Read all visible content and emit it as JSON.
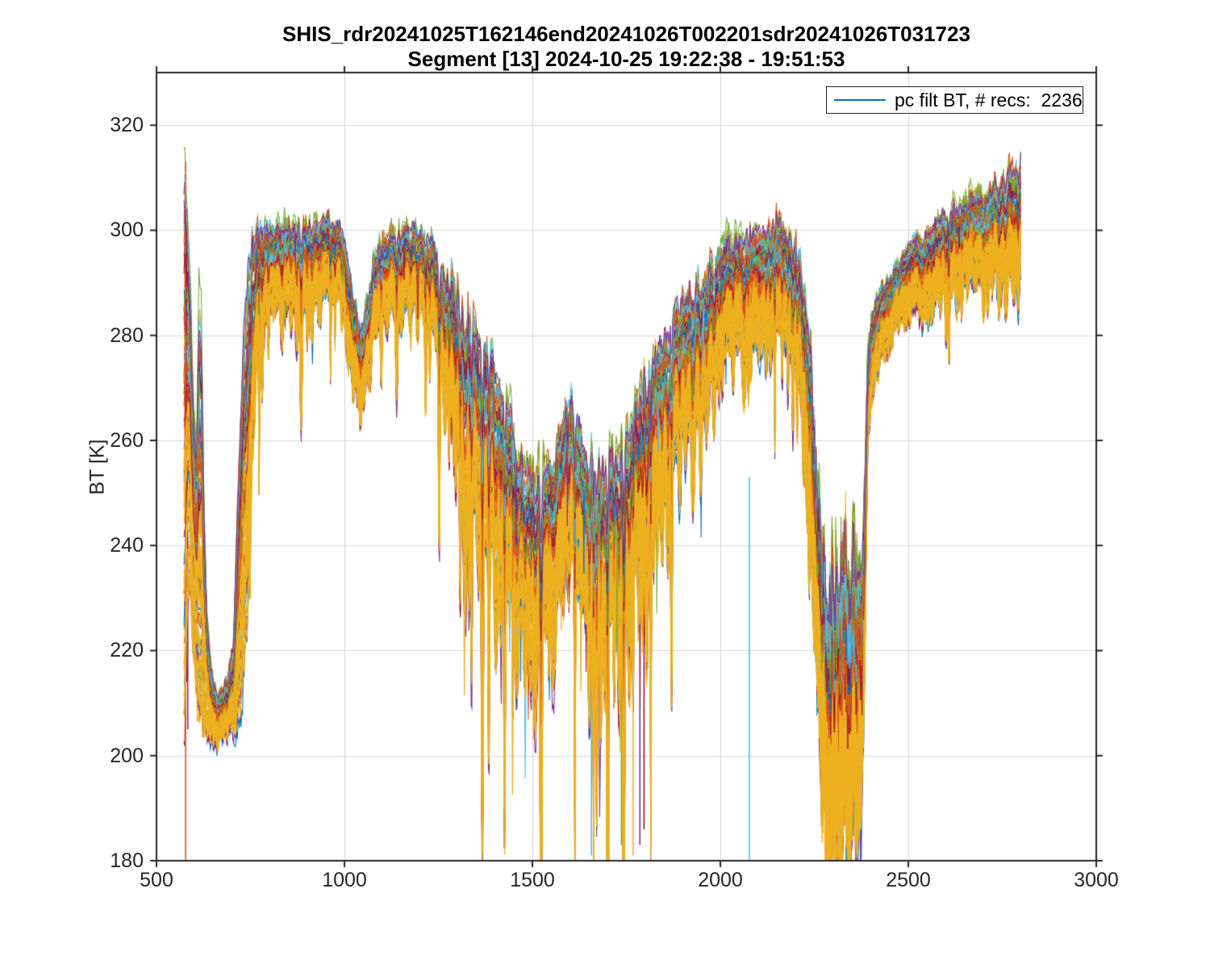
{
  "chart_data": {
    "type": "line",
    "title": "SHIS_rdr20241025T162146end20241026T002201sdr20241026T031723",
    "subtitle": "Segment [13] 2024-10-25 19:22:38 - 19:51:53",
    "ylabel": "BT [K]",
    "xlabel": "",
    "legend": {
      "label": "pc filt BT, # recs:  2236",
      "color": "#0072BD",
      "position": "top-right"
    },
    "n_records": 2236,
    "series_name": "pc filt BT",
    "xlim": [
      500,
      3000
    ],
    "ylim": [
      180,
      330
    ],
    "xticks": [
      500,
      1000,
      1500,
      2000,
      2500,
      3000
    ],
    "yticks": [
      180,
      200,
      220,
      240,
      260,
      280,
      300,
      320
    ],
    "grid": true,
    "grid_color": "#d9d9d9",
    "axis_color": "#262626",
    "palette": [
      "#0072BD",
      "#D95319",
      "#EDB120",
      "#7E2F8E",
      "#77AC30",
      "#4DBEEE",
      "#A2142F"
    ],
    "x_range_of_data": [
      573,
      2800
    ],
    "envelope_columns": [
      "x",
      "top_BT",
      "bottom_BT",
      "spike_depth",
      "noise_K"
    ],
    "envelope": [
      [
        575,
        310,
        206,
        0,
        4
      ],
      [
        582,
        302,
        228,
        8,
        4
      ],
      [
        590,
        289,
        232,
        9,
        4
      ],
      [
        598,
        269,
        222,
        8,
        4
      ],
      [
        606,
        259,
        215,
        8,
        4
      ],
      [
        613,
        287,
        209,
        6,
        5
      ],
      [
        619,
        284,
        207,
        6,
        5
      ],
      [
        626,
        251,
        205,
        5,
        4
      ],
      [
        634,
        227,
        204,
        4,
        3
      ],
      [
        646,
        216,
        203,
        3,
        2.5
      ],
      [
        662,
        212,
        203,
        3,
        2.5
      ],
      [
        678,
        212,
        203,
        3,
        2.5
      ],
      [
        692,
        215,
        204,
        3,
        2.5
      ],
      [
        704,
        221,
        205,
        4,
        2.5
      ],
      [
        713,
        241,
        206,
        7,
        3
      ],
      [
        723,
        263,
        210,
        10,
        4
      ],
      [
        733,
        281,
        219,
        14,
        5
      ],
      [
        743,
        292,
        233,
        18,
        5
      ],
      [
        753,
        297,
        253,
        22,
        5
      ],
      [
        763,
        300,
        271,
        24,
        4
      ],
      [
        773,
        301,
        280,
        23,
        3.5
      ],
      [
        790,
        301,
        284,
        22,
        3
      ],
      [
        820,
        301,
        285,
        21,
        3
      ],
      [
        850,
        302,
        286,
        20,
        3
      ],
      [
        890,
        302,
        287,
        20,
        3
      ],
      [
        930,
        302,
        288,
        19,
        3
      ],
      [
        965,
        302,
        288,
        18,
        3
      ],
      [
        985,
        301,
        287,
        18,
        3
      ],
      [
        1000,
        299,
        284,
        18,
        3
      ],
      [
        1012,
        294,
        277,
        17,
        3
      ],
      [
        1025,
        288,
        271,
        16,
        3
      ],
      [
        1038,
        283,
        267,
        15,
        3
      ],
      [
        1050,
        283,
        268,
        15,
        3
      ],
      [
        1062,
        288,
        273,
        14,
        3
      ],
      [
        1075,
        293,
        279,
        14,
        3
      ],
      [
        1090,
        297,
        282,
        14,
        3
      ],
      [
        1110,
        299,
        284,
        14,
        3
      ],
      [
        1140,
        300,
        285,
        15,
        3
      ],
      [
        1170,
        300,
        286,
        16,
        3
      ],
      [
        1200,
        300,
        285,
        18,
        3
      ],
      [
        1225,
        299,
        283,
        22,
        3
      ],
      [
        1245,
        297,
        279,
        28,
        4
      ],
      [
        1262,
        294,
        273,
        36,
        4
      ],
      [
        1278,
        291,
        266,
        42,
        5
      ],
      [
        1295,
        289,
        259,
        48,
        5
      ],
      [
        1312,
        287,
        254,
        52,
        5
      ],
      [
        1330,
        285,
        250,
        53,
        5
      ],
      [
        1350,
        283,
        248,
        53,
        5
      ],
      [
        1372,
        280,
        244,
        53,
        5
      ],
      [
        1392,
        276,
        241,
        52,
        5
      ],
      [
        1412,
        272,
        237,
        50,
        5
      ],
      [
        1432,
        267,
        232,
        48,
        5
      ],
      [
        1452,
        262,
        228,
        46,
        5
      ],
      [
        1472,
        258,
        224,
        44,
        5
      ],
      [
        1492,
        256,
        221,
        42,
        5
      ],
      [
        1512,
        254,
        220,
        42,
        5
      ],
      [
        1532,
        255,
        222,
        42,
        5
      ],
      [
        1552,
        258,
        226,
        43,
        5
      ],
      [
        1572,
        262,
        231,
        44,
        5
      ],
      [
        1590,
        267,
        238,
        45,
        4
      ],
      [
        1602,
        269,
        241,
        46,
        4
      ],
      [
        1616,
        265,
        235,
        48,
        5
      ],
      [
        1632,
        260,
        228,
        50,
        5
      ],
      [
        1650,
        257,
        225,
        52,
        5
      ],
      [
        1668,
        257,
        225,
        52,
        5
      ],
      [
        1685,
        258,
        226,
        53,
        5
      ],
      [
        1702,
        257,
        224,
        54,
        5
      ],
      [
        1720,
        258,
        225,
        55,
        5
      ],
      [
        1740,
        261,
        228,
        55,
        5
      ],
      [
        1760,
        265,
        231,
        55,
        5
      ],
      [
        1780,
        269,
        236,
        53,
        5
      ],
      [
        1800,
        273,
        240,
        51,
        5
      ],
      [
        1820,
        277,
        245,
        48,
        5
      ],
      [
        1840,
        280,
        249,
        45,
        5
      ],
      [
        1860,
        283,
        253,
        42,
        5
      ],
      [
        1880,
        285,
        257,
        40,
        4
      ],
      [
        1900,
        287,
        260,
        38,
        4
      ],
      [
        1925,
        289,
        263,
        36,
        4
      ],
      [
        1950,
        291,
        266,
        33,
        4
      ],
      [
        1975,
        293,
        270,
        31,
        4
      ],
      [
        2000,
        296,
        274,
        29,
        4
      ],
      [
        2030,
        298,
        277,
        27,
        3.5
      ],
      [
        2060,
        299,
        278,
        26,
        3.5
      ],
      [
        2090,
        300,
        279,
        26,
        3.5
      ],
      [
        2120,
        300,
        279,
        25,
        3.5
      ],
      [
        2150,
        301,
        280,
        25,
        3.5
      ],
      [
        2180,
        300,
        278,
        25,
        3.5
      ],
      [
        2200,
        298,
        274,
        25,
        3.5
      ],
      [
        2213,
        295,
        268,
        24,
        3.5
      ],
      [
        2226,
        289,
        258,
        22,
        4
      ],
      [
        2238,
        280,
        246,
        20,
        6
      ],
      [
        2250,
        264,
        228,
        18,
        9
      ],
      [
        2262,
        248,
        210,
        16,
        13
      ],
      [
        2274,
        240,
        198,
        14,
        16
      ],
      [
        2288,
        236,
        190,
        12,
        17
      ],
      [
        2305,
        234,
        186,
        12,
        18
      ],
      [
        2325,
        234,
        185,
        12,
        18
      ],
      [
        2345,
        235,
        186,
        12,
        18
      ],
      [
        2362,
        233,
        186,
        12,
        17
      ],
      [
        2375,
        234,
        190,
        10,
        15
      ],
      [
        2383,
        246,
        206,
        6,
        10
      ],
      [
        2388,
        265,
        240,
        4,
        6
      ],
      [
        2393,
        276,
        259,
        3,
        4
      ],
      [
        2400,
        282,
        266,
        3,
        3
      ],
      [
        2412,
        286,
        271,
        4,
        2.5
      ],
      [
        2430,
        289,
        276,
        5,
        2.5
      ],
      [
        2455,
        292,
        280,
        6,
        2.5
      ],
      [
        2480,
        295,
        283,
        7,
        2.5
      ],
      [
        2505,
        298,
        285,
        8,
        2.5
      ],
      [
        2522,
        299,
        286,
        8,
        2.5
      ],
      [
        2535,
        297,
        284,
        9,
        3
      ],
      [
        2550,
        300,
        286,
        10,
        3
      ],
      [
        2580,
        302,
        288,
        11,
        3
      ],
      [
        2610,
        304,
        289,
        12,
        3
      ],
      [
        2645,
        305,
        289,
        13,
        3.5
      ],
      [
        2680,
        307,
        290,
        14,
        3.5
      ],
      [
        2715,
        308,
        291,
        15,
        4
      ],
      [
        2750,
        310,
        291,
        17,
        4
      ],
      [
        2775,
        312,
        292,
        18,
        4
      ],
      [
        2800,
        312,
        290,
        18,
        4
      ]
    ],
    "vertical_lines": [
      {
        "x": 577.5,
        "color": "#D95319",
        "y1": 180,
        "y2": 313
      },
      {
        "x": 575.8,
        "color": "#D95319",
        "y1": 250,
        "y2": 308
      },
      {
        "x": 580.5,
        "color": "#A2142F",
        "y1": 214,
        "y2": 304
      },
      {
        "x": 583.2,
        "color": "#7E2F8E",
        "y1": 205,
        "y2": 242
      },
      {
        "x": 1657,
        "color": "#4DBEEE",
        "y1": 181,
        "y2": 226
      },
      {
        "x": 1703,
        "color": "#A2142F",
        "y1": 180,
        "y2": 224
      },
      {
        "x": 1737,
        "color": "#77AC30",
        "y1": 183,
        "y2": 227
      },
      {
        "x": 1768,
        "color": "#EDB120",
        "y1": 181,
        "y2": 232
      },
      {
        "x": 1786,
        "color": "#7E2F8E",
        "y1": 183,
        "y2": 236
      },
      {
        "x": 1797,
        "color": "#A2142F",
        "y1": 186,
        "y2": 238
      },
      {
        "x": 2077,
        "color": "#4DBEEE",
        "y1": 180,
        "y2": 253
      }
    ]
  }
}
